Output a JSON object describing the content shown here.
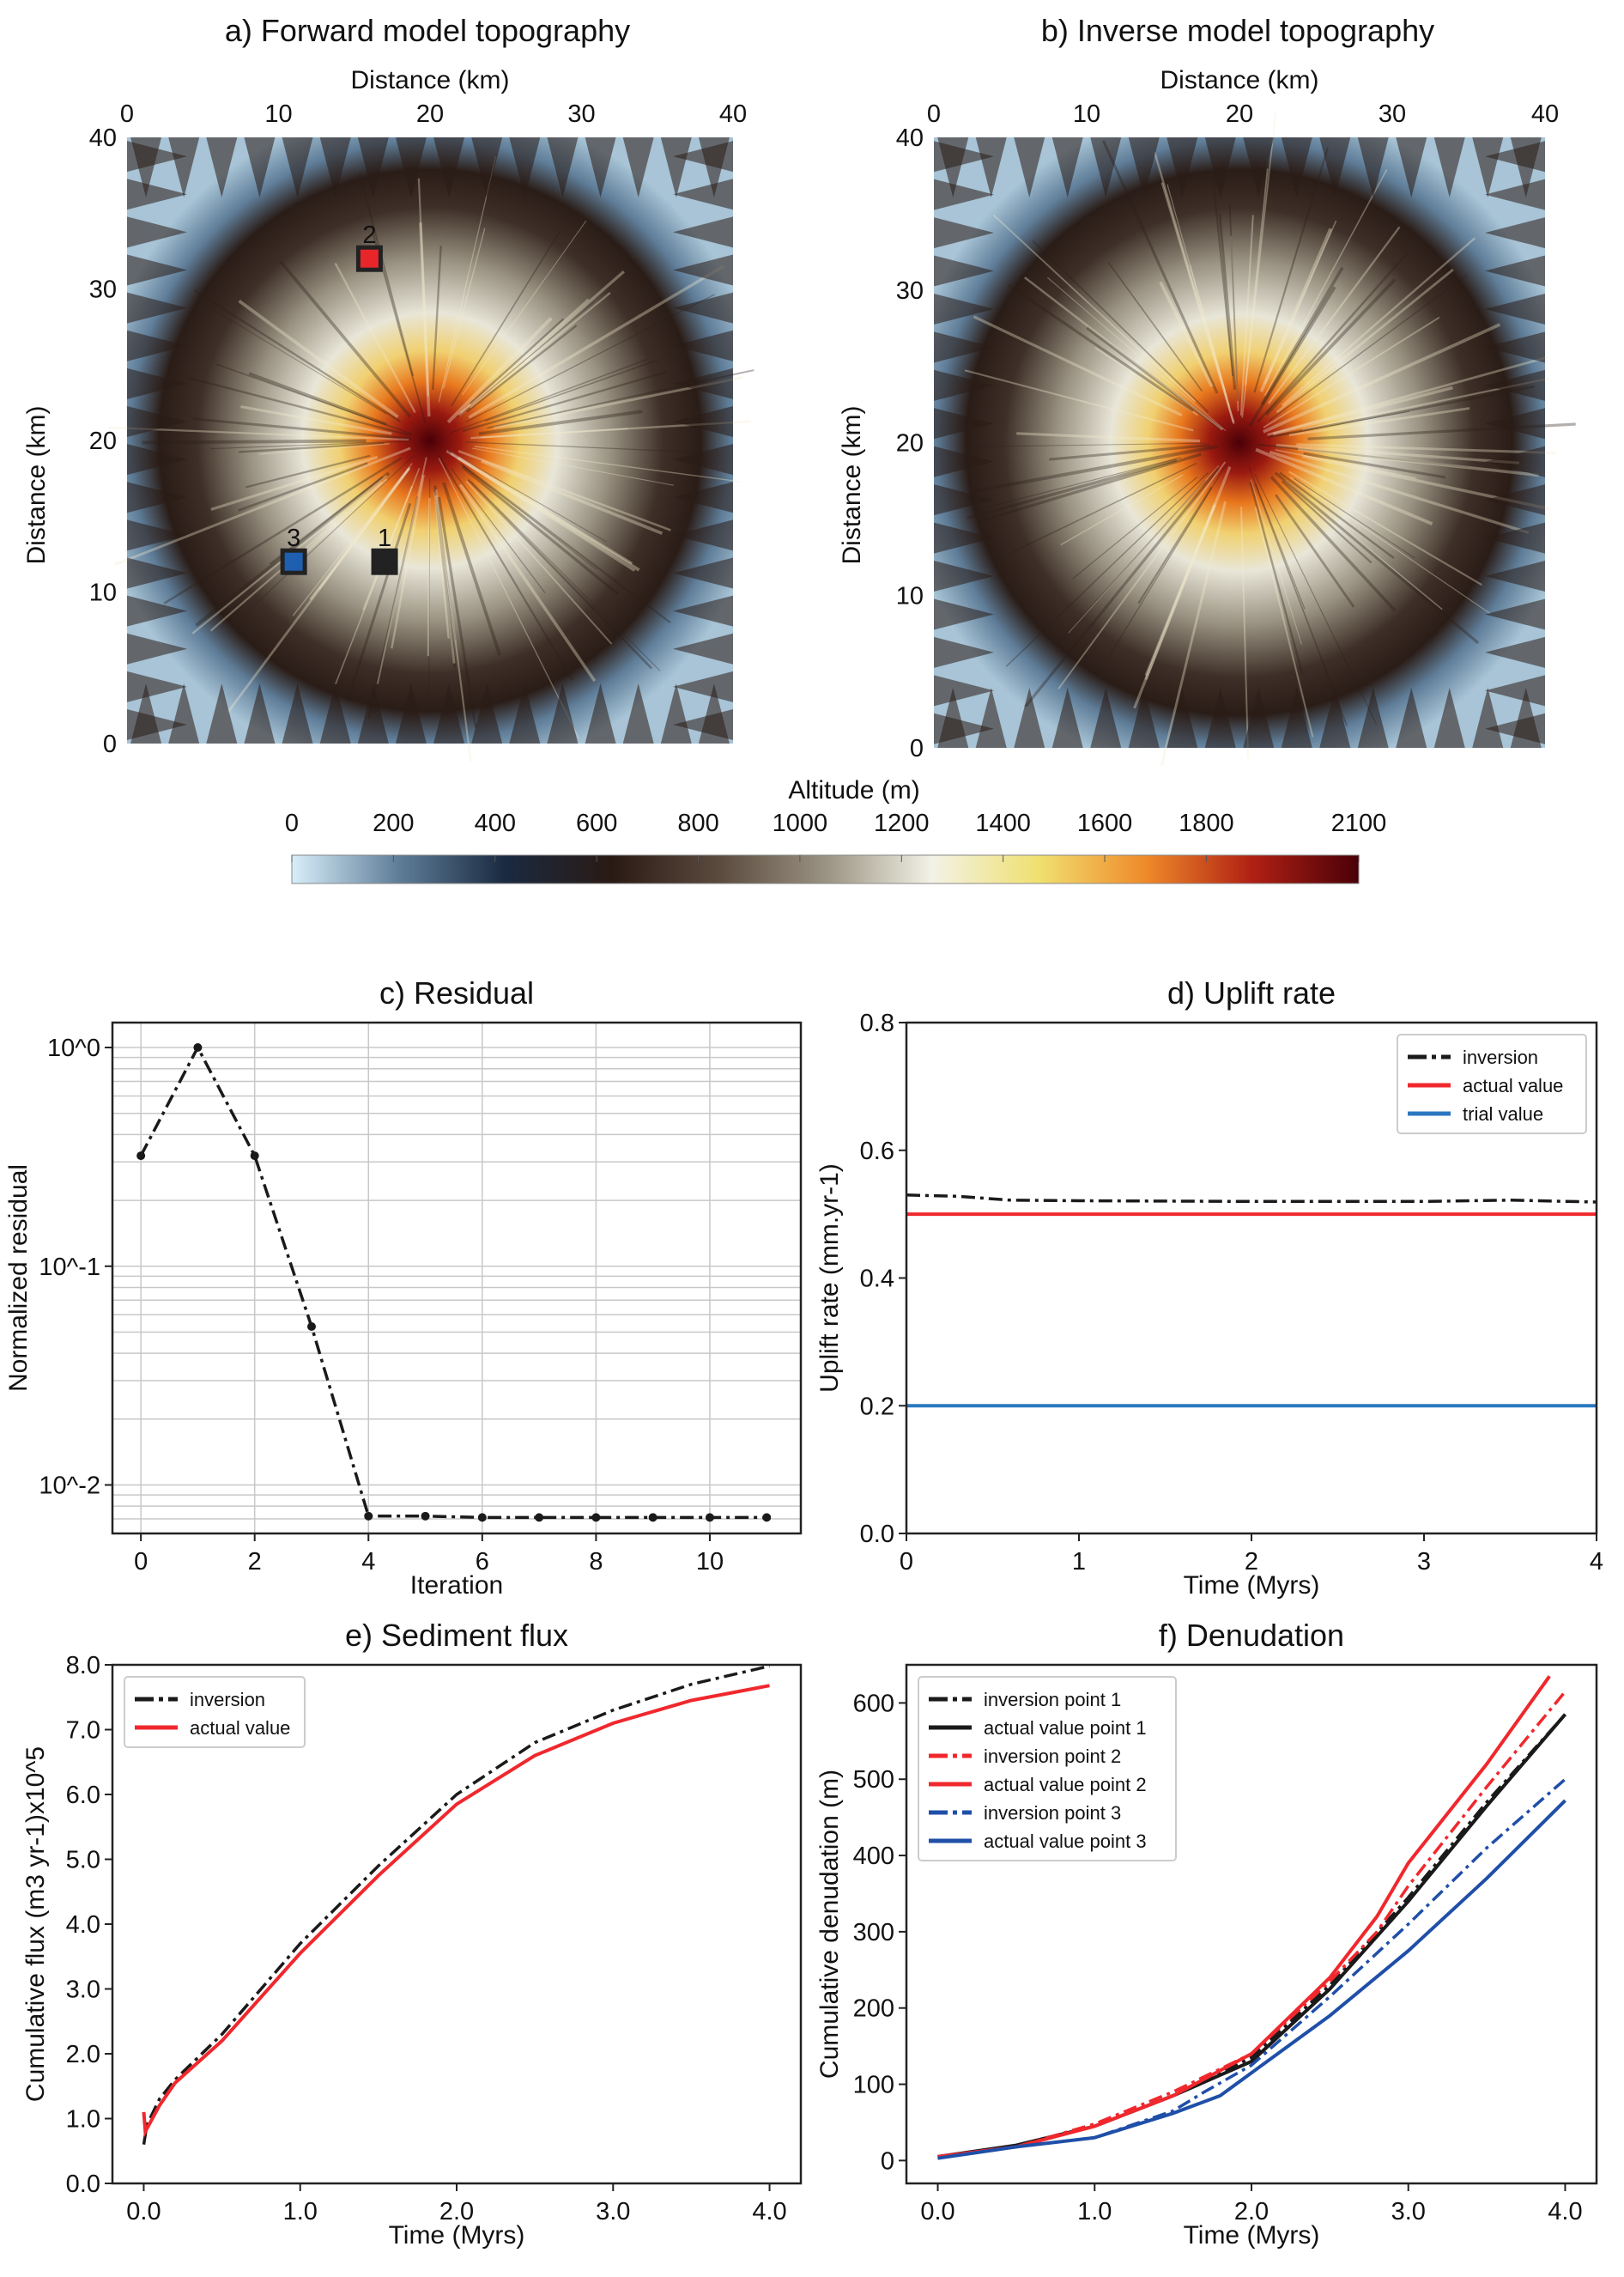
{
  "colors": {
    "black": "#1a1a1a",
    "red": "#f0282d",
    "blue": "#2a78c0",
    "blue_dark": "#1f4fa8",
    "grid": "#c8c8c8"
  },
  "maps": {
    "a": {
      "title": "a) Forward model topography",
      "xlabel": "Distance (km)",
      "ylabel": "Distance (km)",
      "xticks": [
        "0",
        "10",
        "20",
        "30",
        "40"
      ],
      "yticks": [
        "0",
        "10",
        "20",
        "30",
        "40"
      ],
      "points": [
        {
          "label": "1",
          "x": 17,
          "y": 12,
          "color": "#222222"
        },
        {
          "label": "2",
          "x": 16,
          "y": 32,
          "color": "#e8262a"
        },
        {
          "label": "3",
          "x": 11,
          "y": 12,
          "color": "#1f5fb0"
        }
      ]
    },
    "b": {
      "title": "b) Inverse model topography",
      "xlabel": "Distance (km)",
      "ylabel": "Distance (km)",
      "xticks": [
        "0",
        "10",
        "20",
        "30",
        "40"
      ],
      "yticks": [
        "0",
        "10",
        "20",
        "30",
        "40"
      ]
    },
    "extent_km": [
      0,
      40
    ]
  },
  "colorbar": {
    "label": "Altitude (m)",
    "ticks": [
      "0",
      "200",
      "400",
      "600",
      "800",
      "1000",
      "1200",
      "1400",
      "1600",
      "1800",
      "2100"
    ],
    "tick_values": [
      0,
      200,
      400,
      600,
      800,
      1000,
      1200,
      1400,
      1600,
      1800,
      2100
    ],
    "range": [
      0,
      2100
    ],
    "stops": [
      "#d8eefa",
      "#5f7d98",
      "#1a2a40",
      "#2a1a14",
      "#5a4a3e",
      "#9a9282",
      "#f2f2e6",
      "#f0e070",
      "#ef8a2a",
      "#b02014",
      "#4a0008"
    ]
  },
  "chart_data": [
    {
      "id": "c",
      "type": "line",
      "title": "c) Residual",
      "xlabel": "Iteration",
      "ylabel": "Normalized residual",
      "yscale": "log",
      "grid": true,
      "xlim": [
        -0.5,
        11.6
      ],
      "ylim": [
        0.006,
        1.3
      ],
      "xticks": [
        0,
        2,
        4,
        6,
        8,
        10
      ],
      "xtick_labels": [
        "0",
        "2",
        "4",
        "6",
        "8",
        "10"
      ],
      "yticks": [
        1,
        0.1,
        0.01
      ],
      "ytick_labels": [
        "10^0",
        "10^-1",
        "10^-2"
      ],
      "series": [
        {
          "style": "dashdot-marker",
          "color": "#1a1a1a",
          "x": [
            0,
            1,
            2,
            3,
            4,
            5,
            6,
            7,
            8,
            9,
            10,
            11
          ],
          "y": [
            0.32,
            1.0,
            0.32,
            0.053,
            0.0072,
            0.0072,
            0.0071,
            0.0071,
            0.0071,
            0.0071,
            0.0071,
            0.0071
          ]
        }
      ]
    },
    {
      "id": "d",
      "type": "line",
      "title": "d) Uplift rate",
      "xlabel": "Time (Myrs)",
      "ylabel": "Uplift rate (mm.yr-1)",
      "grid": false,
      "legend": "top-right",
      "xlim": [
        0,
        4
      ],
      "ylim": [
        0,
        0.8
      ],
      "xticks": [
        0,
        1,
        2,
        3,
        4
      ],
      "xtick_labels": [
        "0",
        "1",
        "2",
        "3",
        "4"
      ],
      "yticks": [
        0,
        0.2,
        0.4,
        0.6,
        0.8
      ],
      "ytick_labels": [
        "0.0",
        "0.2",
        "0.4",
        "0.6",
        "0.8"
      ],
      "series": [
        {
          "name": "inversion",
          "style": "dashdot",
          "color": "#1a1a1a",
          "x": [
            0,
            0.3,
            0.6,
            1,
            2,
            3,
            3.5,
            4
          ],
          "y": [
            0.53,
            0.528,
            0.522,
            0.521,
            0.52,
            0.52,
            0.522,
            0.519
          ]
        },
        {
          "name": "actual value",
          "style": "solid",
          "color": "#f0282d",
          "x": [
            0,
            4
          ],
          "y": [
            0.5,
            0.5
          ]
        },
        {
          "name": "trial value",
          "style": "solid",
          "color": "#2a78c0",
          "x": [
            0,
            4
          ],
          "y": [
            0.2,
            0.2
          ]
        }
      ]
    },
    {
      "id": "e",
      "type": "line",
      "title": "e) Sediment flux",
      "xlabel": "Time (Myrs)",
      "ylabel": "Cumulative flux (m3 yr-1)x10^5",
      "grid": false,
      "legend": "top-left",
      "xlim": [
        -0.2,
        4.2
      ],
      "ylim": [
        0,
        8
      ],
      "xticks": [
        0,
        1,
        2,
        3,
        4
      ],
      "xtick_labels": [
        "0.0",
        "1.0",
        "2.0",
        "3.0",
        "4.0"
      ],
      "yticks": [
        0,
        1,
        2,
        3,
        4,
        5,
        6,
        7,
        8
      ],
      "ytick_labels": [
        "0.0",
        "1.0",
        "2.0",
        "3.0",
        "4.0",
        "5.0",
        "6.0",
        "7.0",
        "8.0"
      ],
      "series": [
        {
          "name": "inversion",
          "style": "dashdot",
          "color": "#1a1a1a",
          "x": [
            0,
            0.02,
            0.1,
            0.2,
            0.5,
            1,
            1.5,
            2,
            2.5,
            3,
            3.5,
            4
          ],
          "y": [
            0.6,
            0.9,
            1.3,
            1.6,
            2.3,
            3.7,
            4.9,
            6.0,
            6.8,
            7.3,
            7.7,
            7.98
          ]
        },
        {
          "name": "actual value",
          "style": "solid",
          "color": "#f0282d",
          "x": [
            0,
            0.01,
            0.1,
            0.2,
            0.5,
            1,
            1.5,
            2,
            2.5,
            3,
            3.5,
            4
          ],
          "y": [
            1.1,
            0.8,
            1.2,
            1.55,
            2.2,
            3.55,
            4.75,
            5.85,
            6.6,
            7.1,
            7.45,
            7.68
          ]
        }
      ]
    },
    {
      "id": "f",
      "type": "line",
      "title": "f) Denudation",
      "xlabel": "Time (Myrs)",
      "ylabel": "Cumulative denudation (m)",
      "grid": false,
      "legend": "top-left",
      "xlim": [
        -0.2,
        4.2
      ],
      "ylim": [
        -30,
        650
      ],
      "xticks": [
        0,
        1,
        2,
        3,
        4
      ],
      "xtick_labels": [
        "0.0",
        "1.0",
        "2.0",
        "3.0",
        "4.0"
      ],
      "yticks": [
        0,
        100,
        200,
        300,
        400,
        500,
        600
      ],
      "ytick_labels": [
        "0",
        "100",
        "200",
        "300",
        "400",
        "500",
        "600"
      ],
      "series": [
        {
          "name": "inversion point 1",
          "style": "dashdot",
          "color": "#1a1a1a",
          "x": [
            0,
            0.5,
            1,
            1.5,
            2,
            2.5,
            3,
            3.5,
            4
          ],
          "y": [
            5,
            20,
            45,
            85,
            135,
            230,
            345,
            470,
            585
          ]
        },
        {
          "name": "actual value point 1",
          "style": "solid",
          "color": "#1a1a1a",
          "x": [
            0,
            0.5,
            1,
            1.5,
            2,
            2.5,
            3,
            3.5,
            4
          ],
          "y": [
            5,
            20,
            45,
            85,
            130,
            225,
            340,
            465,
            585
          ]
        },
        {
          "name": "inversion point 2",
          "style": "dashdot",
          "color": "#f0282d",
          "x": [
            0,
            0.5,
            1,
            1.5,
            2,
            2.5,
            2.8,
            3,
            3.5,
            4
          ],
          "y": [
            5,
            18,
            48,
            90,
            140,
            235,
            300,
            360,
            490,
            615
          ]
        },
        {
          "name": "actual value point 2",
          "style": "solid",
          "color": "#f0282d",
          "x": [
            0,
            0.5,
            1,
            1.5,
            2,
            2.5,
            2.8,
            3,
            3.5,
            3.9
          ],
          "y": [
            5,
            18,
            45,
            85,
            140,
            240,
            320,
            390,
            520,
            635
          ]
        },
        {
          "name": "inversion point 3",
          "style": "dashdot",
          "color": "#1f4fa8",
          "x": [
            0,
            0.5,
            1,
            1.5,
            1.7,
            2,
            2.5,
            3,
            3.5,
            4
          ],
          "y": [
            3,
            18,
            30,
            65,
            90,
            125,
            215,
            310,
            410,
            500
          ]
        },
        {
          "name": "actual value point 3",
          "style": "solid",
          "color": "#1f4fa8",
          "x": [
            0,
            0.5,
            1,
            1.5,
            1.8,
            2,
            2.5,
            3,
            3.5,
            4
          ],
          "y": [
            3,
            18,
            30,
            62,
            85,
            115,
            190,
            275,
            370,
            472
          ]
        }
      ]
    }
  ]
}
